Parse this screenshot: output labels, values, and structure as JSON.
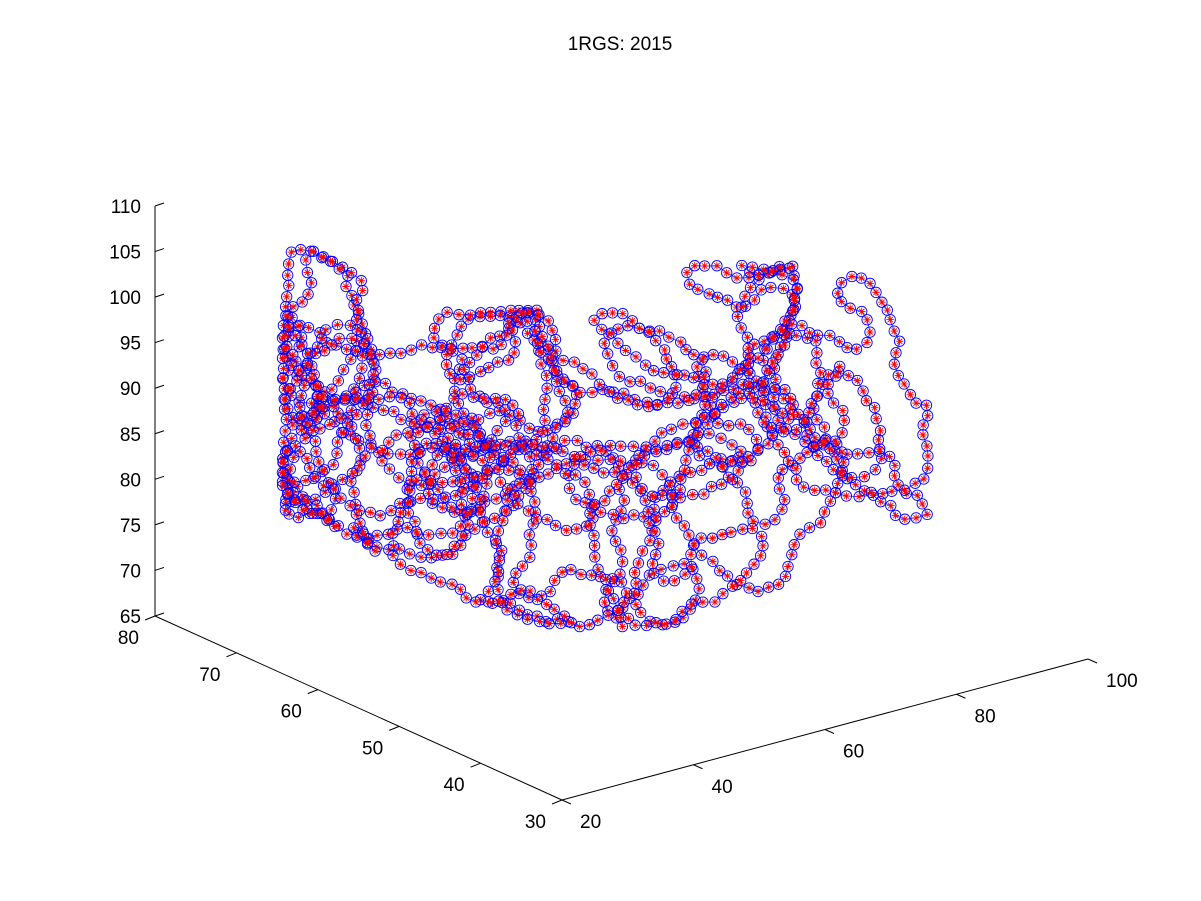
{
  "chart_data": {
    "type": "scatter3d",
    "title": "1RGS: 2015",
    "xlabel": "",
    "ylabel": "",
    "zlabel": "",
    "xlim": [
      20,
      100
    ],
    "ylim": [
      30,
      80
    ],
    "zlim": [
      65,
      110
    ],
    "x_ticks": [
      "20",
      "40",
      "60",
      "80",
      "100"
    ],
    "y_ticks": [
      "30",
      "40",
      "50",
      "60",
      "70",
      "80"
    ],
    "z_ticks": [
      "65",
      "70",
      "75",
      "80",
      "85",
      "90",
      "95",
      "100",
      "105",
      "110"
    ],
    "grid": false,
    "marker_overlay": "circle (blue) with star (red) at every point",
    "colors": {
      "circle": "#0000ff",
      "star": "#ff0000",
      "axis": "#000000",
      "connecting_line": "#0000ff"
    },
    "series": [
      {
        "description": "protein backbone atom coordinates (x, y, z), roughly 2000 atoms in a U-shaped cloud; chain traced in order by thin blue lines",
        "atom_count": 2000,
        "x_range": [
          25,
          100
        ],
        "y_range": [
          35,
          75
        ],
        "z_range": [
          66,
          108
        ]
      }
    ]
  }
}
